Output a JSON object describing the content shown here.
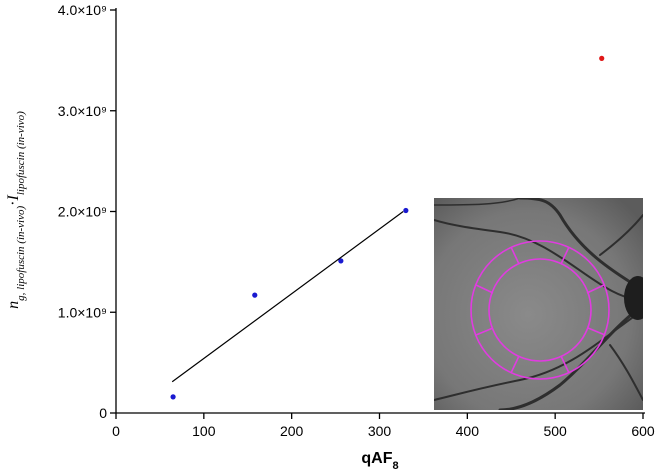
{
  "chart_data": {
    "type": "scatter",
    "x_label": [
      "qAF",
      "8"
    ],
    "y_label": [
      "n",
      "g, lipofuscin (in-vivo)",
      "·",
      "I",
      "lipofuscin (in-vivo)"
    ],
    "xlim": [
      0,
      600
    ],
    "xticks": [
      0,
      100,
      200,
      300,
      400,
      500,
      600
    ],
    "ylim": [
      0,
      4000000000
    ],
    "yticks": [
      0,
      {
        "value": 1000000000,
        "label": "1.0×10⁹"
      },
      {
        "value": 2000000000,
        "label": "2.0×10⁹"
      },
      {
        "value": 3000000000,
        "label": "3.0×10⁹"
      },
      {
        "value": 4000000000,
        "label": "4.0×10⁹"
      }
    ],
    "series": [
      {
        "color": "#1a1ad0",
        "x": [
          65,
          158,
          256,
          330
        ],
        "values": [
          160000000,
          1170000000,
          1510000000,
          2010000000
        ]
      },
      {
        "color": "#e01818",
        "x": [
          553
        ],
        "values": [
          3520000000
        ]
      },
      {
        "type": "line",
        "color": "#000000",
        "x": [
          64,
          327
        ],
        "values": [
          310000000,
          2000000000
        ]
      }
    ]
  }
}
